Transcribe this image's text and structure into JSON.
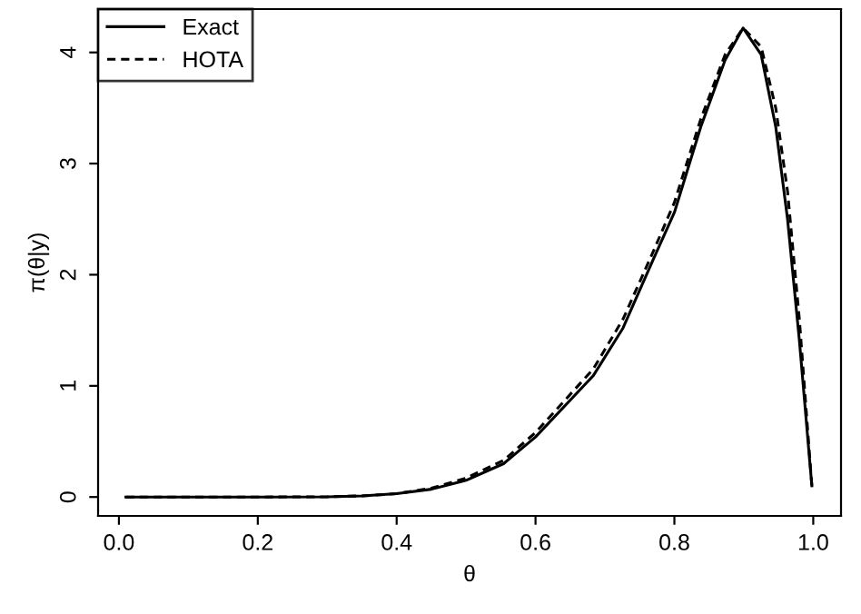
{
  "chart_data": {
    "type": "line",
    "xlabel": "θ",
    "ylabel": "π(θ|y)",
    "xlim": [
      -0.03,
      1.04
    ],
    "ylim": [
      -0.17,
      4.39
    ],
    "xticks": [
      {
        "value": 0,
        "label": "0.0"
      },
      0.2,
      0.4,
      0.6,
      0.8,
      {
        "value": 1,
        "label": "1.0"
      }
    ],
    "yticks": [
      0,
      1,
      2,
      3,
      4
    ],
    "grid": false,
    "legend": "top left",
    "marker": "none",
    "series": [
      {
        "name": "Exact",
        "color": "#000000",
        "line_style": "solid",
        "x": [
          0.01,
          0.1,
          0.2,
          0.3,
          0.35,
          0.4,
          0.45,
          0.5,
          0.554,
          0.6,
          0.683,
          0.726,
          0.769,
          0.8,
          0.838,
          0.873,
          0.899,
          0.925,
          0.946,
          0.963,
          0.98,
          0.998
        ],
        "values": [
          0,
          0,
          0,
          0.002,
          0.01,
          0.03,
          0.07,
          0.15,
          0.3,
          0.54,
          1.09,
          1.52,
          2.13,
          2.56,
          3.33,
          3.93,
          4.22,
          3.98,
          3.33,
          2.5,
          1.41,
          0.1
        ]
      },
      {
        "name": "HOTA",
        "color": "#000000",
        "line_style": "dashed",
        "x": [
          0.01,
          0.1,
          0.2,
          0.3,
          0.35,
          0.4,
          0.45,
          0.5,
          0.554,
          0.6,
          0.683,
          0.726,
          0.769,
          0.8,
          0.838,
          0.873,
          0.899,
          0.925,
          0.946,
          0.963,
          0.98,
          0.998
        ],
        "values": [
          0,
          0,
          0,
          0.002,
          0.01,
          0.03,
          0.08,
          0.17,
          0.33,
          0.58,
          1.15,
          1.6,
          2.2,
          2.65,
          3.4,
          3.98,
          4.22,
          4.05,
          3.5,
          2.75,
          1.6,
          0.1
        ]
      }
    ]
  }
}
